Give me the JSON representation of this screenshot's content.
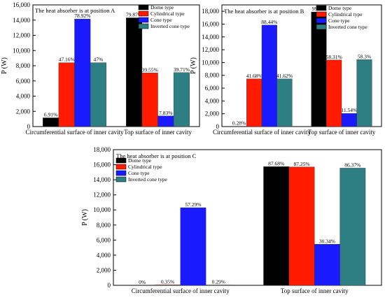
{
  "chart_data": [
    {
      "type": "bar",
      "title": "The heat absorber is at position A",
      "ylabel": "P (W)",
      "xlabel": "",
      "ylim": [
        0,
        16000
      ],
      "yticks": [
        0,
        2000,
        4000,
        6000,
        8000,
        10000,
        12000,
        14000,
        16000
      ],
      "ytick_labels": [
        "0",
        "2,000",
        "4,000",
        "6,000",
        "8,000",
        "10,000",
        "12,000",
        "14,000",
        "16,000"
      ],
      "categories": [
        "Circumferential surface of inner cavity",
        "Top surface of inner cavity"
      ],
      "legend_position": "top-right",
      "series": [
        {
          "name": "Dome type",
          "color": "#000000",
          "values": [
            1150,
            14300
          ],
          "labels": [
            "6.91%",
            "79.87%"
          ]
        },
        {
          "name": "Cylindrical type",
          "color": "#ff1a00",
          "values": [
            8400,
            7050
          ],
          "labels": [
            "47.16%",
            "39.55%"
          ]
        },
        {
          "name": "Cone type",
          "color": "#1a1aff",
          "values": [
            14150,
            1400
          ],
          "labels": [
            "78.92%",
            "7.83%"
          ]
        },
        {
          "name": "Inverted cone type",
          "color": "#2e7f84",
          "values": [
            8400,
            7100
          ],
          "labels": [
            "47%",
            "39.71%"
          ]
        }
      ]
    },
    {
      "type": "bar",
      "title": "The heat absorber is at position B",
      "ylabel": "P (W)",
      "xlabel": "",
      "ylim": [
        0,
        19000
      ],
      "yticks": [
        0,
        2000,
        4000,
        6000,
        8000,
        10000,
        12000,
        14000,
        16000,
        18000
      ],
      "ytick_labels": [
        "0",
        "2,000",
        "4,000",
        "6,000",
        "8,000",
        "10,000",
        "12,000",
        "14,000",
        "16,000",
        "18,000"
      ],
      "categories": [
        "Circumferential surface of inner cavity",
        "Top surface of inner cavity"
      ],
      "legend_position": "top-right",
      "series": [
        {
          "name": "Dome type",
          "color": "#000000",
          "values": [
            50,
            17900
          ],
          "labels": [
            "0.28%",
            "99.7%"
          ]
        },
        {
          "name": "Cylindrical type",
          "color": "#ff1a00",
          "values": [
            7450,
            10400
          ],
          "labels": [
            "41.68%",
            "58.31%"
          ]
        },
        {
          "name": "Cone type",
          "color": "#1a1aff",
          "values": [
            15850,
            2050
          ],
          "labels": [
            "88.44%",
            "11.54%"
          ]
        },
        {
          "name": "Inverted cone type",
          "color": "#2e7f84",
          "values": [
            7450,
            10450
          ],
          "labels": [
            "41.62%",
            "58.3%"
          ]
        }
      ]
    },
    {
      "type": "bar",
      "title": "The heat absorber is at position C",
      "ylabel": "P (W)",
      "xlabel": "",
      "ylim": [
        0,
        18000
      ],
      "yticks": [
        0,
        2000,
        4000,
        6000,
        8000,
        10000,
        12000,
        14000,
        16000,
        18000
      ],
      "ytick_labels": [
        "0",
        "2,000",
        "4,000",
        "6,000",
        "8,000",
        "10,000",
        "12,000",
        "14,000",
        "16,000",
        "18,000"
      ],
      "categories": [
        "Circumferential surface of inner cavity",
        "Top surface of inner cavity"
      ],
      "legend_position": "top-left",
      "series": [
        {
          "name": "Dome type",
          "color": "#000000",
          "values": [
            0,
            15750
          ],
          "labels": [
            "0%",
            "87.68%"
          ]
        },
        {
          "name": "Cylindrical type",
          "color": "#ff1a00",
          "values": [
            60,
            15700
          ],
          "labels": [
            "0.35%",
            "87.25%"
          ]
        },
        {
          "name": "Cone type",
          "color": "#1a1aff",
          "values": [
            10300,
            5450
          ],
          "labels": [
            "57.29%",
            "30.34%"
          ]
        },
        {
          "name": "Inverted cone type",
          "color": "#2e7f84",
          "values": [
            50,
            15550
          ],
          "labels": [
            "0.29%",
            "86.37%"
          ]
        }
      ]
    }
  ]
}
